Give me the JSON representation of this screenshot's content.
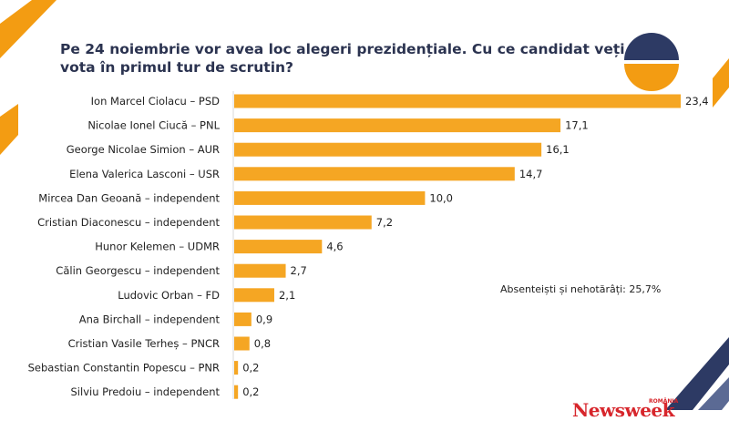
{
  "page": {
    "title": "Pe 24 noiembrie vor avea loc alegeri prezidențiale. Cu ce candidat veți vota în primul tur de scrutin?",
    "note": "Absenteiști și nehotărâți: 25,7%",
    "logo_text": "Newsweek",
    "logo_sub": "ROMÂNIA"
  },
  "colors": {
    "bar": "#f5a623",
    "accent_orange": "#f39c12",
    "accent_navy": "#2d3a64",
    "title": "#2b3350"
  },
  "chart_data": {
    "type": "bar",
    "orientation": "horizontal",
    "title": "Pe 24 noiembrie vor avea loc alegeri prezidențiale. Cu ce candidat veți vota în primul tur de scrutin?",
    "categories": [
      "Ion Marcel Ciolacu – PSD",
      "Nicolae Ionel Ciucă – PNL",
      "George Nicolae Simion – AUR",
      "Elena Valerica Lasconi – USR",
      "Mircea Dan Geoană – independent",
      "Cristian Diaconescu – independent",
      "Hunor Kelemen – UDMR",
      "Călin Georgescu – independent",
      "Ludovic Orban – FD",
      "Ana Birchall – independent",
      "Cristian Vasile Terheș – PNCR",
      "Sebastian Constantin Popescu – PNR",
      "Silviu Predoiu – independent"
    ],
    "values": [
      23.4,
      17.1,
      16.1,
      14.7,
      10.0,
      7.2,
      4.6,
      2.7,
      2.1,
      0.9,
      0.8,
      0.2,
      0.2
    ],
    "value_labels": [
      "23,4",
      "17,1",
      "16,1",
      "14,7",
      "10,0",
      "7,2",
      "4,6",
      "2,7",
      "2,1",
      "0,9",
      "0,8",
      "0,2",
      "0,2"
    ],
    "xlim": [
      0,
      23.4
    ],
    "xlabel": "",
    "ylabel": "",
    "grid": false
  }
}
